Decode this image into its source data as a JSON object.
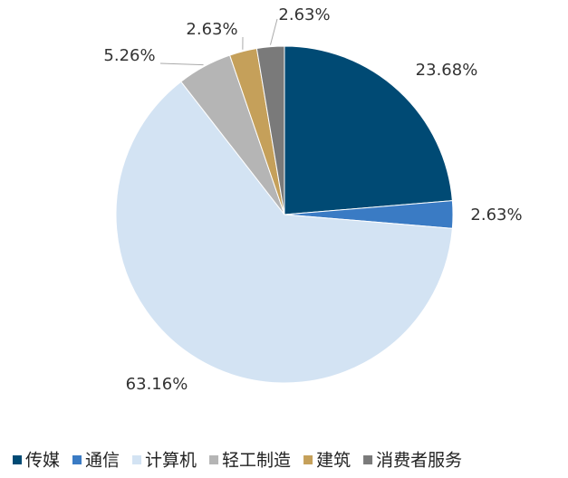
{
  "chart_data": {
    "type": "pie",
    "categories": [
      "传媒",
      "通信",
      "计算机",
      "轻工制造",
      "建筑",
      "消费者服务"
    ],
    "values": [
      23.68,
      2.63,
      63.16,
      5.26,
      2.63,
      2.63
    ],
    "value_labels": [
      "23.68%",
      "2.63%",
      "63.16%",
      "5.26%",
      "2.63%",
      "2.63%"
    ],
    "colors": [
      "#004a74",
      "#3a7bc4",
      "#d3e3f3",
      "#b5b5b5",
      "#c5a05a",
      "#7a7a7a"
    ],
    "legend": "bottom"
  }
}
